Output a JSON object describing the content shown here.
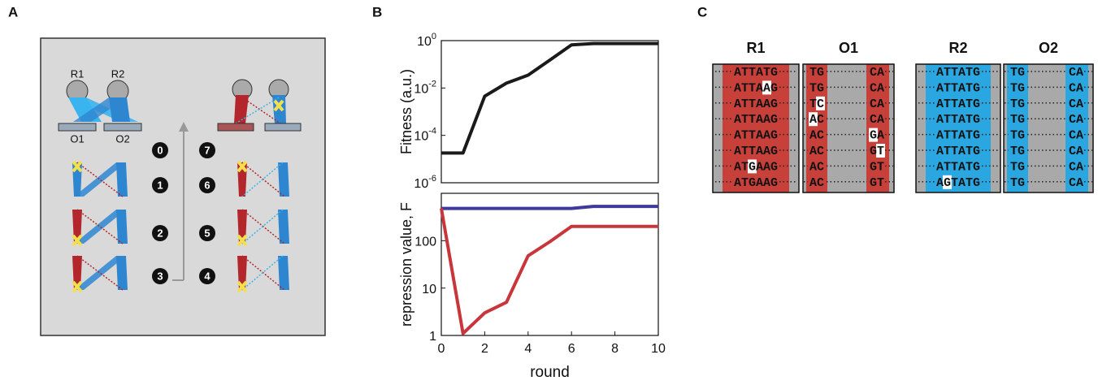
{
  "panel_labels": [
    "A",
    "B",
    "C"
  ],
  "diagram": {
    "repressors": [
      "R1",
      "R2"
    ],
    "operators": [
      "O1",
      "O2"
    ],
    "steps": [
      "0",
      "1",
      "2",
      "3",
      "4",
      "5",
      "6",
      "7"
    ]
  },
  "chart_data": [
    {
      "type": "line",
      "ylabel": "Fitness (a.u.)",
      "log_scale": true,
      "x": [
        0,
        1,
        2,
        3,
        4,
        5,
        6,
        7,
        8,
        9,
        10
      ],
      "xlim": [
        0,
        10
      ],
      "series": [
        {
          "color": "#1a1a1a",
          "values": [
            1.8e-05,
            1.8e-05,
            0.0045,
            0.016,
            0.035,
            0.15,
            0.66,
            0.75,
            0.75,
            0.75,
            0.75
          ]
        }
      ],
      "ylim": [
        1e-06,
        1
      ],
      "yticks": [
        {
          "value": 1e-06,
          "label": "10^-6"
        },
        {
          "value": 0.0001,
          "label": "10^-4"
        },
        {
          "value": 0.01,
          "label": "10^-2"
        },
        {
          "value": 1,
          "label": "10^0"
        }
      ]
    },
    {
      "type": "line",
      "ylabel": "repression value, F",
      "xlabel": "round",
      "log_scale": true,
      "x": [
        0,
        1,
        2,
        3,
        4,
        5,
        6,
        7,
        8,
        9,
        10
      ],
      "xlim": [
        0,
        10
      ],
      "xticks": [
        0,
        2,
        4,
        6,
        8,
        10
      ],
      "series": [
        {
          "color": "#3d3a9c",
          "values": [
            480,
            480,
            480,
            480,
            480,
            480,
            480,
            530,
            530,
            530,
            530
          ]
        },
        {
          "color": "#c8353a",
          "values": [
            480,
            1.1,
            3.0,
            5.0,
            48,
            95,
            200,
            200,
            200,
            200,
            200
          ]
        }
      ],
      "ylim": [
        1,
        1000
      ],
      "yticks": [
        1,
        10,
        100
      ]
    }
  ],
  "sequences": {
    "blocks": [
      {
        "title": "R1",
        "kind": "repressor",
        "color": "#c8403a",
        "rows": [
          "ATTATG",
          "ATTAAG",
          "ATTAAG",
          "ATTAAG",
          "ATTAAG",
          "ATTAAG",
          "ATGAAG",
          "ATGAAG"
        ],
        "mutations": [
          {
            "row": 1,
            "pos": 4
          },
          {
            "row": 6,
            "pos": 2
          }
        ]
      },
      {
        "title": "O1",
        "kind": "operator",
        "color": "#c8403a",
        "left": [
          "TG",
          "TG",
          "TC",
          "AC",
          "AC",
          "AC",
          "AC",
          "AC"
        ],
        "right": [
          "CA",
          "CA",
          "CA",
          "CA",
          "GA",
          "GT",
          "GT",
          "GT"
        ],
        "mutations": [
          {
            "row": 2,
            "side": "left",
            "pos": 1
          },
          {
            "row": 3,
            "side": "left",
            "pos": 0
          },
          {
            "row": 4,
            "side": "right",
            "pos": 0
          },
          {
            "row": 5,
            "side": "right",
            "pos": 1
          }
        ]
      },
      {
        "title": "R2",
        "kind": "repressor",
        "color": "#2aa7e0",
        "rows": [
          "ATTATG",
          "ATTATG",
          "ATTATG",
          "ATTATG",
          "ATTATG",
          "ATTATG",
          "ATTATG",
          "AGTATG"
        ],
        "mutations": [
          {
            "row": 7,
            "pos": 1
          }
        ]
      },
      {
        "title": "O2",
        "kind": "operator",
        "color": "#2aa7e0",
        "left": [
          "TG",
          "TG",
          "TG",
          "TG",
          "TG",
          "TG",
          "TG",
          "TG"
        ],
        "right": [
          "CA",
          "CA",
          "CA",
          "CA",
          "CA",
          "CA",
          "CA",
          "CA"
        ],
        "mutations": []
      }
    ]
  }
}
